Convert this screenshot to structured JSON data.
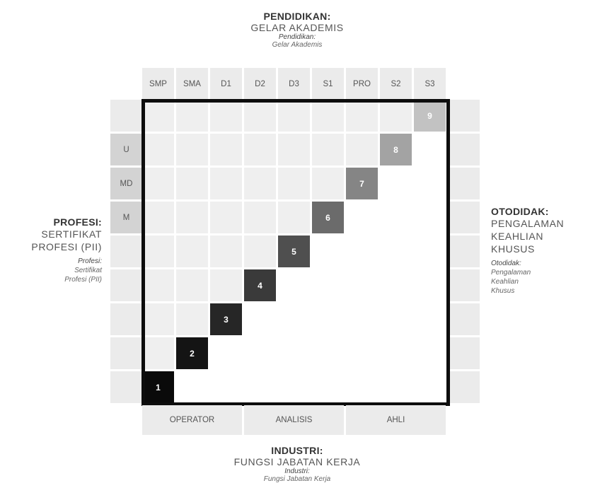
{
  "top": {
    "title": "PENDIDIKAN:",
    "subtitle": "GELAR AKADEMIS",
    "note_title": "Pendidikan:",
    "note": "Gelar Akademis"
  },
  "bottom": {
    "title": "INDUSTRI:",
    "subtitle": "FUNGSI JABATAN KERJA",
    "note_title": "Industri:",
    "note": "Fungsi Jabatan Kerja"
  },
  "left": {
    "title": "PROFESI:",
    "line1": "SERTIFIKAT",
    "line2": "PROFESI (PII)",
    "note_title": "Profesi:",
    "note1": "Sertifikat",
    "note2": "Profesi (PII)"
  },
  "right": {
    "title": "OTODIDAK:",
    "line1": "PENGALAMAN",
    "line2": "KEAHLIAN",
    "line3": "KHUSUS",
    "note_title": "Otodidak:",
    "note1": "Pengalaman",
    "note2": "Keahlian",
    "note3": "Khusus"
  },
  "columns": [
    "SMP",
    "SMA",
    "D1",
    "D2",
    "D3",
    "S1",
    "PRO",
    "S2",
    "S3"
  ],
  "rows": [
    "",
    "U",
    "MD",
    "M",
    "",
    "",
    "",
    "",
    ""
  ],
  "levels": [
    {
      "label": "1",
      "color": "#0a0a0a"
    },
    {
      "label": "2",
      "color": "#141414"
    },
    {
      "label": "3",
      "color": "#262626"
    },
    {
      "label": "4",
      "color": "#3a3a3a"
    },
    {
      "label": "5",
      "color": "#4f4f4f"
    },
    {
      "label": "6",
      "color": "#6b6b6b"
    },
    {
      "label": "7",
      "color": "#858585"
    },
    {
      "label": "8",
      "color": "#a3a3a3"
    },
    {
      "label": "9",
      "color": "#c2c2c2"
    }
  ],
  "groups": [
    "OPERATOR",
    "ANALISIS",
    "AHLI"
  ]
}
